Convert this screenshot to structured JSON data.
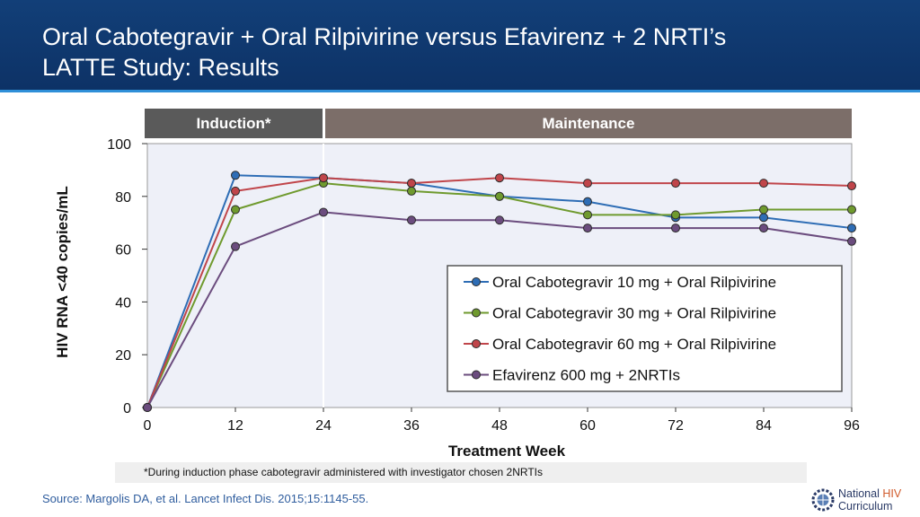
{
  "header": {
    "title_line1": "Oral Cabotegravir + Oral Rilpivirine versus Efavirenz + 2 NRTI’s",
    "title_line2": "LATTE Study: Results"
  },
  "phases": {
    "induction": "Induction*",
    "maintenance": "Maintenance"
  },
  "footnote": "*During induction phase cabotegravir administered with investigator chosen 2NRTIs",
  "source": "Source: Margolis DA, et al. Lancet Infect Dis. 2015;15:1145-55.",
  "logo": {
    "word1": "National",
    "word2": "HIV",
    "word3": "Curriculum",
    "icon": "gear-globe-icon"
  },
  "colors": {
    "header": "#123f78",
    "accent_rule": "#2f8fd8",
    "plot_bg": "#eef0f8",
    "source_text": "#2f5d9e"
  },
  "chart_data": {
    "type": "line",
    "title": "",
    "xlabel": "Treatment Week",
    "ylabel": "HIV RNA <40 copies/mL",
    "x": [
      0,
      12,
      24,
      36,
      48,
      60,
      72,
      84,
      96
    ],
    "xlim": [
      0,
      96
    ],
    "ylim": [
      0,
      100
    ],
    "yticks": [
      0,
      20,
      40,
      60,
      80,
      100
    ],
    "grid": false,
    "legend_position": "lower-right",
    "series": [
      {
        "name": "Oral Cabotegravir 10 mg + Oral Rilpivirine",
        "color": "#2e6db5",
        "values": [
          0,
          88,
          87,
          85,
          80,
          78,
          72,
          72,
          68
        ]
      },
      {
        "name": "Oral Cabotegravir 30 mg + Oral Rilpivirine",
        "color": "#6f9a2e",
        "values": [
          0,
          75,
          85,
          82,
          80,
          73,
          73,
          75,
          75
        ]
      },
      {
        "name": "Oral Cabotegravir 60 mg + Oral Rilpivirine",
        "color": "#c0454a",
        "values": [
          0,
          82,
          87,
          85,
          87,
          85,
          85,
          85,
          84
        ]
      },
      {
        "name": "Efavirenz 600 mg + 2NRTIs",
        "color": "#6b4c7e",
        "values": [
          0,
          61,
          74,
          71,
          71,
          68,
          68,
          68,
          63
        ]
      }
    ]
  }
}
